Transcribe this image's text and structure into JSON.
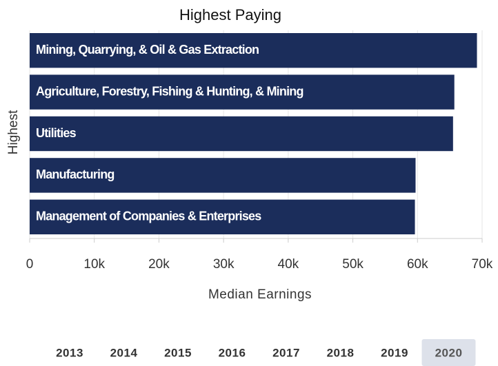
{
  "chart_data": {
    "type": "barh",
    "title": "Highest Paying",
    "categories": [
      "Mining, Quarrying, & Oil & Gas Extraction",
      "Agriculture, Forestry, Fishing & Hunting, & Mining",
      "Utilities",
      "Manufacturing",
      "Management of Companies & Enterprises"
    ],
    "values": [
      69200,
      65700,
      65500,
      59700,
      59600
    ],
    "color": "#1b2d5b",
    "x_label": "Median Earnings",
    "y_label": "Highest",
    "xlim": [
      0,
      70000
    ],
    "xticks": [
      0,
      {
        "value": 10000,
        "label": "10k"
      },
      {
        "value": 20000,
        "label": "20k"
      },
      {
        "value": 30000,
        "label": "30k"
      },
      {
        "value": 40000,
        "label": "40k"
      },
      {
        "value": 50000,
        "label": "50k"
      },
      {
        "value": 60000,
        "label": "60k"
      },
      {
        "value": 70000,
        "label": "70k"
      }
    ],
    "grid": true
  },
  "controls": {
    "years": [
      "2013",
      "2014",
      "2015",
      "2016",
      "2017",
      "2018",
      "2019",
      "2020"
    ],
    "selected": "2020"
  }
}
